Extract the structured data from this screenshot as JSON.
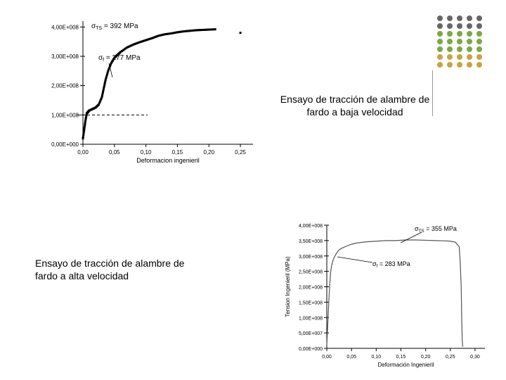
{
  "decorative": {
    "dot_radius": 4,
    "dot_spacing_x": 14,
    "dot_spacing_y": 11,
    "cols": 5,
    "rows": 7,
    "color_top": "#666666",
    "color_mid": "#7aa843",
    "color_bot": "#c9a243",
    "split_row_mid": 2,
    "split_row_bot": 5
  },
  "chart1": {
    "title_line1": "Ensayo de tracción de alambre de",
    "title_line2": "fardo a baja velocidad",
    "sigma_ts_label": "σ",
    "sigma_ts_sub": "TS",
    "sigma_ts_eq": " = 392  MPa",
    "sigma_f_label": "σ",
    "sigma_f_sub": "f",
    "sigma_f_eq": " = 277  MPa",
    "xlabel": "Deformacion ingenieril",
    "xlim": [
      0.0,
      0.27
    ],
    "ylim": [
      0,
      420000000.0
    ],
    "yticks": [
      "0,00E+000",
      "1,00E+008",
      "2,00E+008",
      "3,00E+008",
      "4,00E+008"
    ],
    "ytick_vals": [
      0,
      100000000.0,
      200000000.0,
      300000000.0,
      400000000.0
    ],
    "xticks": [
      "0,00",
      "0,05",
      "0,10",
      "0,15",
      "0,20",
      "0,25"
    ],
    "xtick_vals": [
      0,
      0.05,
      0.1,
      0.15,
      0.2,
      0.25
    ],
    "curve": [
      [
        0.0,
        20000000.0
      ],
      [
        0.002,
        50000000.0
      ],
      [
        0.004,
        80000000.0
      ],
      [
        0.006,
        105000000.0
      ],
      [
        0.008,
        110000000.0
      ],
      [
        0.01,
        115000000.0
      ],
      [
        0.015,
        120000000.0
      ],
      [
        0.02,
        125000000.0
      ],
      [
        0.025,
        135000000.0
      ],
      [
        0.03,
        160000000.0
      ],
      [
        0.033,
        190000000.0
      ],
      [
        0.036,
        220000000.0
      ],
      [
        0.04,
        250000000.0
      ],
      [
        0.045,
        277000000.0
      ],
      [
        0.05,
        295000000.0
      ],
      [
        0.055,
        305000000.0
      ],
      [
        0.06,
        315000000.0
      ],
      [
        0.07,
        330000000.0
      ],
      [
        0.08,
        340000000.0
      ],
      [
        0.09,
        348000000.0
      ],
      [
        0.1,
        355000000.0
      ],
      [
        0.11,
        362000000.0
      ],
      [
        0.12,
        370000000.0
      ],
      [
        0.13,
        375000000.0
      ],
      [
        0.14,
        378000000.0
      ],
      [
        0.15,
        382000000.0
      ],
      [
        0.16,
        385000000.0
      ],
      [
        0.17,
        387000000.0
      ],
      [
        0.18,
        389000000.0
      ],
      [
        0.19,
        390000000.0
      ],
      [
        0.2,
        391000000.0
      ],
      [
        0.21,
        392000000.0
      ]
    ],
    "extra_point": [
      0.25,
      380000000.0
    ],
    "dashed_y": 100000000.0,
    "curve_color": "#000000",
    "axis_color": "#000000",
    "background": "#ffffff",
    "tick_fontsize": 8,
    "label_fontsize": 9,
    "annotation_fontsize": 10
  },
  "chart2": {
    "title_line1": "Ensayo de tracción de alambre de",
    "title_line2": "fardo a alta velocidad",
    "sigma_ts_label": "σ",
    "sigma_ts_sub": "TS",
    "sigma_ts_eq": " = 355  MPa",
    "sigma_f_label": "σ",
    "sigma_f_sub": "f",
    "sigma_f_eq": " = 283  MPa",
    "xlabel": "Deformación Ingenieril",
    "ylabel": "Tension Ingenieril (MPa)",
    "xlim": [
      0.0,
      0.32
    ],
    "ylim": [
      0,
      400000000.0
    ],
    "yticks": [
      "0,00E+000",
      "5,00E+007",
      "1,00E+008",
      "1,50E+008",
      "2,00E+008",
      "2,50E+008",
      "3,00E+008",
      "3,50E+008",
      "4,00E+008"
    ],
    "ytick_vals": [
      0,
      50000000.0,
      100000000.0,
      150000000.0,
      200000000.0,
      250000000.0,
      300000000.0,
      350000000.0,
      400000000.0
    ],
    "xticks": [
      "0,00",
      "0,05",
      "0,10",
      "0,15",
      "0,20",
      "0,25",
      "0,30"
    ],
    "xtick_vals": [
      0,
      0.05,
      0.1,
      0.15,
      0.2,
      0.25,
      0.3
    ],
    "curve": [
      [
        0.0,
        10000000.0
      ],
      [
        0.002,
        80000000.0
      ],
      [
        0.004,
        150000000.0
      ],
      [
        0.006,
        210000000.0
      ],
      [
        0.008,
        250000000.0
      ],
      [
        0.01,
        270000000.0
      ],
      [
        0.012,
        283000000.0
      ],
      [
        0.015,
        295000000.0
      ],
      [
        0.02,
        310000000.0
      ],
      [
        0.025,
        320000000.0
      ],
      [
        0.03,
        325000000.0
      ],
      [
        0.04,
        332000000.0
      ],
      [
        0.05,
        338000000.0
      ],
      [
        0.06,
        342000000.0
      ],
      [
        0.08,
        346000000.0
      ],
      [
        0.1,
        348000000.0
      ],
      [
        0.12,
        350000000.0
      ],
      [
        0.14,
        350000000.0
      ],
      [
        0.16,
        352000000.0
      ],
      [
        0.18,
        352000000.0
      ],
      [
        0.2,
        351000000.0
      ],
      [
        0.22,
        350000000.0
      ],
      [
        0.24,
        349000000.0
      ],
      [
        0.25,
        348000000.0
      ],
      [
        0.26,
        345000000.0
      ],
      [
        0.268,
        330000000.0
      ],
      [
        0.27,
        280000000.0
      ],
      [
        0.272,
        200000000.0
      ],
      [
        0.273,
        100000000.0
      ],
      [
        0.274,
        30000000.0
      ],
      [
        0.275,
        5000000.0
      ]
    ],
    "curve_color": "#555555",
    "axis_color": "#000000",
    "background": "#ffffff",
    "tick_fontsize": 7,
    "label_fontsize": 8,
    "annotation_fontsize": 9
  }
}
